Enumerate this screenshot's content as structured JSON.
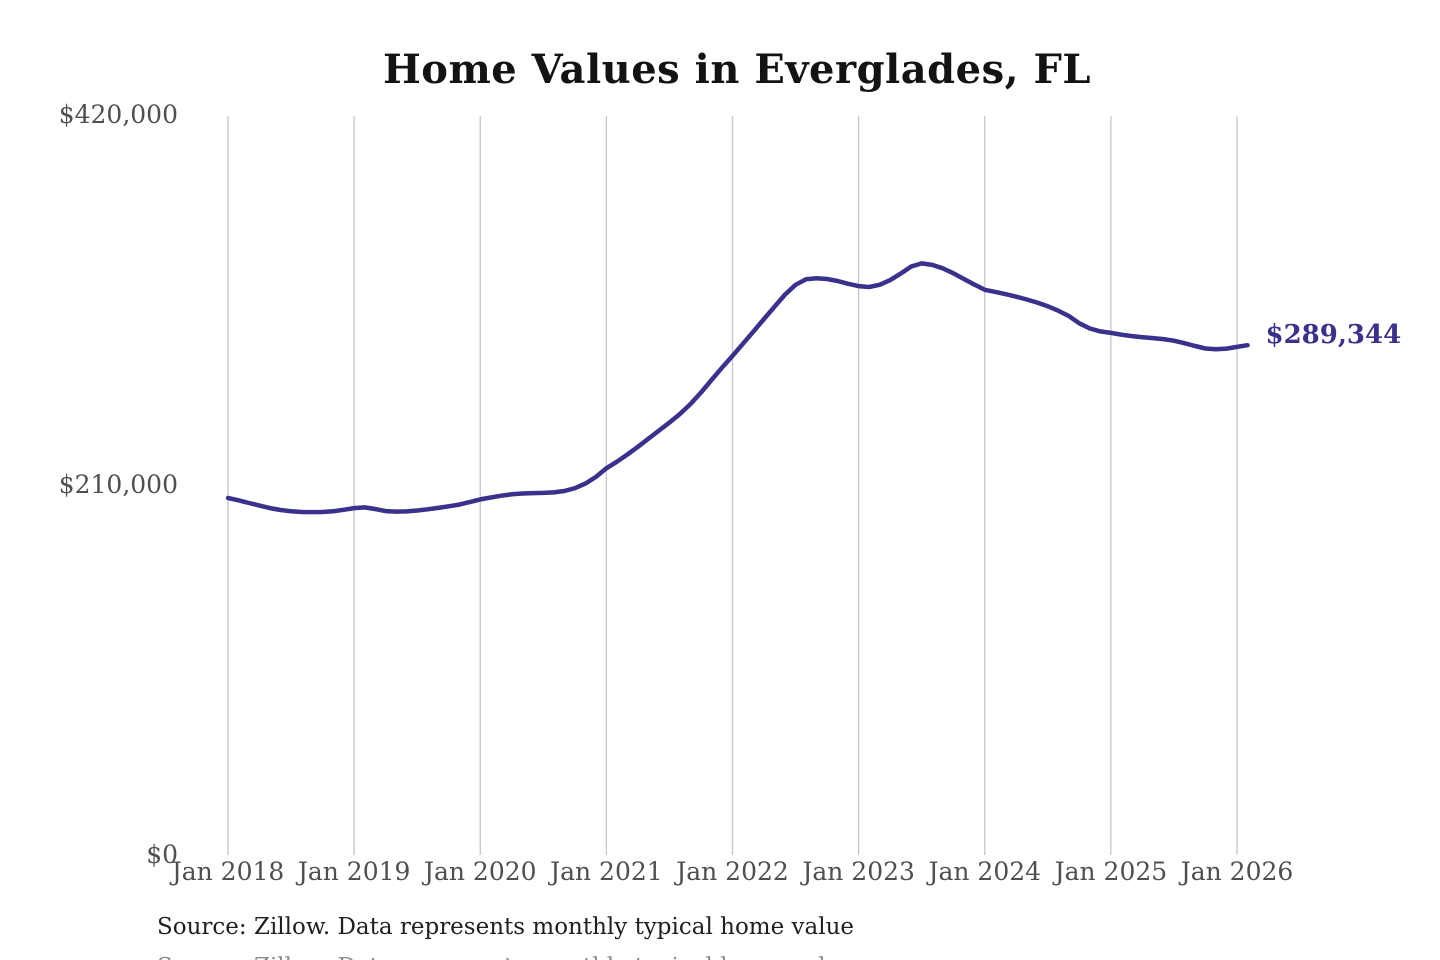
{
  "title": "Home Values in Everglades, FL",
  "source_note": "Source: Zillow. Data represents monthly typical home value",
  "colors": {
    "line": "#39318b",
    "grid": "#c6c6c6",
    "axis_text": "#4f4f4f",
    "title_text": "#131313",
    "source_text": "#1f1f1f",
    "end_label_text": "#39318b"
  },
  "chart_data": {
    "type": "line",
    "title": "Home Values in Everglades, FL",
    "xlabel": "",
    "ylabel": "",
    "grid": "vertical-only",
    "legend": "none",
    "ylim": [
      0,
      420000
    ],
    "y_ticks": [
      0,
      210000,
      420000
    ],
    "y_tick_labels": [
      "$0",
      "$210,000",
      "$420,000"
    ],
    "x_tick_labels": [
      "Jan 2018",
      "Jan 2019",
      "Jan 2020",
      "Jan 2021",
      "Jan 2022",
      "Jan 2023",
      "Jan 2024",
      "Jan 2025",
      "Jan 2026"
    ],
    "current_value": 289344,
    "current_value_label": "$289,344",
    "x": [
      "2018-01",
      "2018-02",
      "2018-03",
      "2018-04",
      "2018-05",
      "2018-06",
      "2018-07",
      "2018-08",
      "2018-09",
      "2018-10",
      "2018-11",
      "2018-12",
      "2019-01",
      "2019-02",
      "2019-03",
      "2019-04",
      "2019-05",
      "2019-06",
      "2019-07",
      "2019-08",
      "2019-09",
      "2019-10",
      "2019-11",
      "2019-12",
      "2020-01",
      "2020-02",
      "2020-03",
      "2020-04",
      "2020-05",
      "2020-06",
      "2020-07",
      "2020-08",
      "2020-09",
      "2020-10",
      "2020-11",
      "2020-12",
      "2021-01",
      "2021-02",
      "2021-03",
      "2021-04",
      "2021-05",
      "2021-06",
      "2021-07",
      "2021-08",
      "2021-09",
      "2021-10",
      "2021-11",
      "2021-12",
      "2022-01",
      "2022-02",
      "2022-03",
      "2022-04",
      "2022-05",
      "2022-06",
      "2022-07",
      "2022-08",
      "2022-09",
      "2022-10",
      "2022-11",
      "2022-12",
      "2023-01",
      "2023-02",
      "2023-03",
      "2023-04",
      "2023-05",
      "2023-06",
      "2023-07",
      "2023-08",
      "2023-09",
      "2023-10",
      "2023-11",
      "2023-12",
      "2024-01",
      "2024-02",
      "2024-03",
      "2024-04",
      "2024-05",
      "2024-06",
      "2024-07",
      "2024-08",
      "2024-09",
      "2024-10",
      "2024-11",
      "2024-12",
      "2025-01",
      "2025-02",
      "2025-03",
      "2025-04",
      "2025-05",
      "2025-06",
      "2025-07",
      "2025-08",
      "2025-09",
      "2025-10",
      "2025-11",
      "2025-12",
      "2026-01",
      "2026-02"
    ],
    "values": [
      202600,
      201300,
      199800,
      198300,
      196900,
      195800,
      195100,
      194700,
      194600,
      194700,
      195100,
      195900,
      196900,
      197300,
      196400,
      195200,
      194900,
      195000,
      195500,
      196200,
      197000,
      197900,
      198900,
      200300,
      201800,
      202900,
      203900,
      204700,
      205200,
      205400,
      205500,
      205800,
      206600,
      208200,
      210800,
      214600,
      219500,
      223200,
      227300,
      231700,
      236300,
      240900,
      245400,
      250300,
      256000,
      262500,
      269600,
      276600,
      283300,
      290200,
      297200,
      304200,
      311200,
      318100,
      323600,
      326800,
      327300,
      326900,
      325800,
      324200,
      322900,
      322400,
      323600,
      326300,
      330000,
      334000,
      335800,
      334900,
      333000,
      330200,
      327000,
      323800,
      320800,
      319600,
      318300,
      316900,
      315300,
      313500,
      311400,
      308900,
      305900,
      301800,
      298800,
      297200,
      296300,
      295300,
      294500,
      293900,
      293400,
      292800,
      291900,
      290500,
      288900,
      287500,
      287000,
      287400,
      288400,
      289344
    ]
  }
}
